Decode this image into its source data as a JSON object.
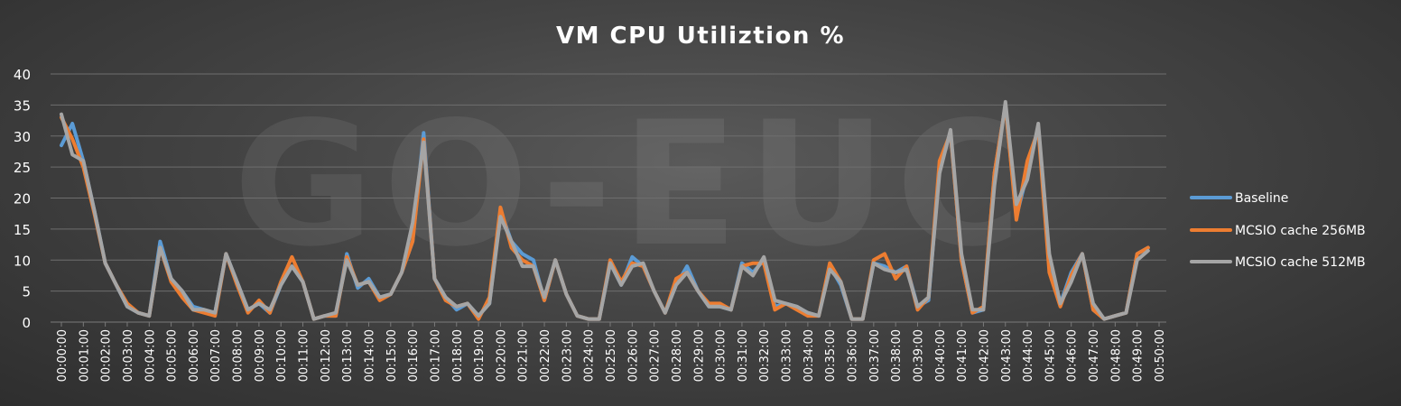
{
  "chart_data": {
    "type": "line",
    "title": "VM CPU Utiliztion %",
    "watermark": "GO-EUC",
    "ylim": [
      0,
      40
    ],
    "yticks": [
      0,
      5,
      10,
      15,
      20,
      25,
      30,
      35,
      40
    ],
    "grid": true,
    "legend_position": "right",
    "x_tick_labels": [
      "00:00:00",
      "00:01:00",
      "00:02:00",
      "00:03:00",
      "00:04:00",
      "00:05:00",
      "00:06:00",
      "00:07:00",
      "00:08:00",
      "00:09:00",
      "00:10:00",
      "00:11:00",
      "00:12:00",
      "00:13:00",
      "00:14:00",
      "00:15:00",
      "00:16:00",
      "00:17:00",
      "00:18:00",
      "00:19:00",
      "00:20:00",
      "00:21:00",
      "00:22:00",
      "00:23:00",
      "00:24:00",
      "00:25:00",
      "00:26:00",
      "00:27:00",
      "00:28:00",
      "00:29:00",
      "00:30:00",
      "00:31:00",
      "00:32:00",
      "00:33:00",
      "00:34:00",
      "00:35:00",
      "00:36:00",
      "00:37:00",
      "00:38:00",
      "00:39:00",
      "00:40:00",
      "00:41:00",
      "00:42:00",
      "00:43:00",
      "00:44:00",
      "00:45:00",
      "00:46:00",
      "00:47:00",
      "00:48:00",
      "00:49:00",
      "00:50:00"
    ],
    "points_per_minute": 2,
    "series": [
      {
        "name": "Baseline",
        "color": "#5b9bd5",
        "values": [
          28.5,
          32,
          26,
          18,
          9.5,
          6,
          2.5,
          1.5,
          1,
          13,
          7,
          5,
          2.5,
          2,
          1.5,
          11,
          6.5,
          2,
          3,
          1.5,
          6,
          9,
          6.5,
          0.5,
          1,
          1,
          11,
          5.5,
          7,
          4,
          4.5,
          8,
          13,
          30.5,
          7,
          4,
          2,
          3,
          1,
          3,
          18,
          13,
          11,
          10,
          3.5,
          10,
          4.5,
          1,
          0.5,
          0.5,
          9.5,
          6,
          10.5,
          9,
          5,
          1.5,
          6,
          9,
          5,
          2.5,
          2.5,
          2,
          9.5,
          8,
          10,
          2.5,
          3,
          2.5,
          1.5,
          1,
          9,
          6,
          0.5,
          0.5,
          9.5,
          9,
          8,
          9,
          2.5,
          3.5,
          25,
          30.5,
          10,
          1.5,
          2,
          24,
          35,
          17,
          24,
          31.5,
          10,
          3,
          8,
          11,
          2,
          0.5,
          1,
          1.5,
          11,
          12
        ]
      },
      {
        "name": "MCSIO cache 256MB",
        "color": "#ed7d31",
        "values": [
          33,
          29.5,
          25,
          17.5,
          9.5,
          6,
          3,
          1.5,
          1,
          12,
          6.5,
          4,
          2,
          1.5,
          1,
          11,
          6,
          1.5,
          3.5,
          1.5,
          6.5,
          10.5,
          6.5,
          0.5,
          1,
          1,
          10.5,
          6,
          6.5,
          3.5,
          4.5,
          8,
          13,
          29.5,
          7,
          3.5,
          2.5,
          3,
          0.5,
          4,
          18.5,
          12,
          10,
          9,
          3.5,
          10,
          4.5,
          1,
          0.5,
          0.5,
          10,
          6.5,
          9.5,
          9,
          5,
          1.5,
          7,
          8,
          5,
          3,
          3,
          2,
          9,
          9.5,
          9.5,
          2,
          3,
          2,
          1,
          1,
          9.5,
          6.5,
          0.5,
          0.5,
          10,
          11,
          7,
          9,
          2,
          4,
          26,
          30.5,
          10,
          1.5,
          2.5,
          24,
          35,
          16.5,
          26,
          31,
          8,
          2.5,
          7.5,
          11,
          2,
          0.5,
          1,
          1.5,
          11,
          12
        ]
      },
      {
        "name": "MCSIO cache 512MB",
        "color": "#a5a5a5",
        "values": [
          33.5,
          27,
          26,
          18,
          9.5,
          6,
          2.5,
          1.5,
          1,
          12,
          7,
          5,
          2,
          2,
          1.5,
          11,
          6.5,
          2,
          3,
          2,
          6,
          9,
          6.5,
          0.5,
          1,
          1.5,
          10,
          6,
          6.5,
          4,
          4.5,
          8,
          16,
          29,
          7,
          4,
          2.5,
          3,
          1,
          3,
          17,
          13,
          9,
          9,
          4,
          10,
          4.5,
          1,
          0.5,
          0.5,
          9.5,
          6,
          9,
          9.5,
          5,
          1.5,
          6,
          8,
          5,
          2.5,
          2.5,
          2,
          9,
          7.5,
          10.5,
          3.5,
          3,
          2.5,
          1.5,
          1,
          8.5,
          6.5,
          0.5,
          0.5,
          9.5,
          8.5,
          8,
          8.5,
          2.5,
          4,
          24,
          31,
          11,
          2,
          2,
          22,
          35.5,
          19,
          23,
          32,
          11,
          3,
          6.5,
          11,
          3,
          0.5,
          1,
          1.5,
          10,
          11.5
        ]
      }
    ]
  }
}
